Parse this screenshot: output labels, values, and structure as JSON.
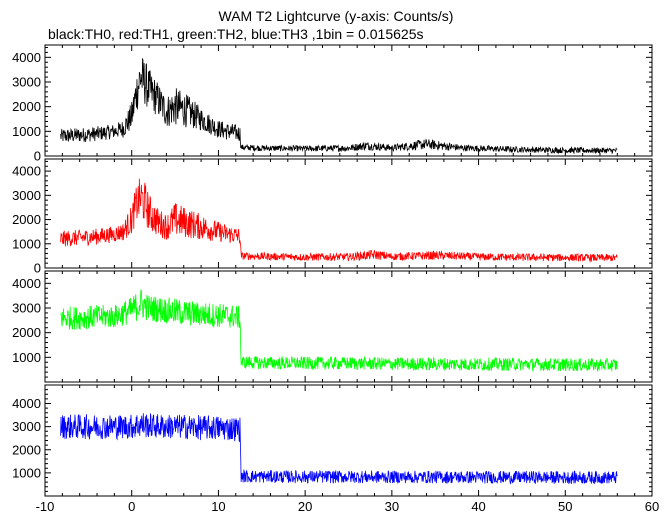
{
  "chart_data": {
    "type": "line",
    "title": "WAM T2 Lightcurve (y-axis: Counts/s)",
    "subtitle": "black:TH0, red:TH1, green:TH2, blue:TH3 ,1bin = 0.015625s",
    "xlabel": "",
    "ylabel": "",
    "xlim": [
      -10,
      60
    ],
    "x_ticks": [
      -10,
      0,
      10,
      20,
      30,
      40,
      50,
      60
    ],
    "grid": false,
    "panels": [
      {
        "name": "TH0",
        "color": "#000000",
        "ylim": [
          0,
          4500
        ],
        "y_ticks": [
          0,
          1000,
          2000,
          3000,
          4000
        ],
        "x": [
          -8.2,
          -6,
          -4,
          -2,
          -1,
          0,
          0.5,
          1,
          1.5,
          2,
          3,
          4,
          5,
          6,
          7,
          8,
          9,
          10,
          11,
          12,
          12.5,
          12.6,
          15,
          20,
          25,
          27,
          30,
          34,
          38,
          45,
          50,
          56
        ],
        "values": [
          800,
          850,
          900,
          1000,
          1100,
          1600,
          2500,
          3200,
          3000,
          2700,
          2300,
          1800,
          2000,
          1900,
          1700,
          1500,
          1300,
          1100,
          1000,
          950,
          900,
          350,
          320,
          300,
          320,
          420,
          330,
          480,
          330,
          260,
          230,
          220
        ],
        "noise": [
          250,
          250,
          250,
          250,
          300,
          500,
          700,
          800,
          800,
          700,
          600,
          550,
          650,
          600,
          500,
          400,
          350,
          300,
          300,
          280,
          280,
          100,
          100,
          100,
          110,
          150,
          110,
          180,
          110,
          100,
          100,
          90
        ]
      },
      {
        "name": "TH1",
        "color": "#ff0000",
        "ylim": [
          0,
          4500
        ],
        "y_ticks": [
          0,
          1000,
          2000,
          3000,
          4000
        ],
        "x": [
          -8.2,
          -6,
          -4,
          -2,
          -1,
          0,
          0.5,
          1,
          1.5,
          2,
          3,
          4,
          5,
          6,
          7,
          8,
          9,
          10,
          11,
          12,
          12.5,
          12.6,
          15,
          20,
          25,
          28,
          30,
          35,
          40,
          45,
          50,
          56
        ],
        "values": [
          1200,
          1250,
          1300,
          1400,
          1500,
          2000,
          2600,
          2900,
          2700,
          2300,
          1900,
          1700,
          2000,
          1900,
          1800,
          1700,
          1600,
          1500,
          1400,
          1350,
          1300,
          500,
          480,
          450,
          460,
          550,
          470,
          520,
          460,
          440,
          430,
          420
        ],
        "noise": [
          280,
          280,
          280,
          280,
          320,
          500,
          650,
          750,
          750,
          650,
          500,
          450,
          600,
          550,
          500,
          450,
          400,
          350,
          320,
          300,
          300,
          130,
          130,
          130,
          130,
          170,
          130,
          150,
          130,
          130,
          130,
          130
        ]
      },
      {
        "name": "TH2",
        "color": "#00ff00",
        "ylim": [
          0,
          4500
        ],
        "y_ticks": [
          1000,
          2000,
          3000,
          4000
        ],
        "x": [
          -8.2,
          -6,
          -4,
          -2,
          0,
          1,
          2,
          4,
          6,
          8,
          10,
          12,
          12.5,
          12.6,
          15,
          20,
          25,
          30,
          35,
          40,
          45,
          50,
          56
        ],
        "values": [
          2600,
          2600,
          2650,
          2650,
          2900,
          3200,
          3000,
          2900,
          2800,
          2750,
          2700,
          2650,
          2600,
          800,
          780,
          760,
          760,
          740,
          730,
          720,
          720,
          700,
          690
        ],
        "noise": [
          400,
          400,
          400,
          400,
          450,
          550,
          450,
          450,
          450,
          420,
          420,
          400,
          400,
          220,
          220,
          220,
          220,
          220,
          220,
          220,
          220,
          220,
          220
        ]
      },
      {
        "name": "TH3",
        "color": "#0000ff",
        "ylim": [
          0,
          4800
        ],
        "y_ticks": [
          1000,
          2000,
          3000,
          4000
        ],
        "x": [
          -8.2,
          -4,
          0,
          1,
          2,
          4,
          6,
          8,
          10,
          12,
          12.5,
          12.6,
          15,
          20,
          25,
          30,
          35,
          40,
          45,
          50,
          56
        ],
        "values": [
          3000,
          3000,
          3000,
          3100,
          3050,
          3000,
          3000,
          2950,
          2950,
          2900,
          2900,
          850,
          840,
          830,
          830,
          820,
          820,
          810,
          810,
          800,
          800
        ],
        "noise": [
          450,
          450,
          450,
          500,
          450,
          450,
          450,
          450,
          450,
          450,
          450,
          230,
          230,
          230,
          230,
          230,
          230,
          230,
          230,
          230,
          230
        ]
      }
    ]
  }
}
